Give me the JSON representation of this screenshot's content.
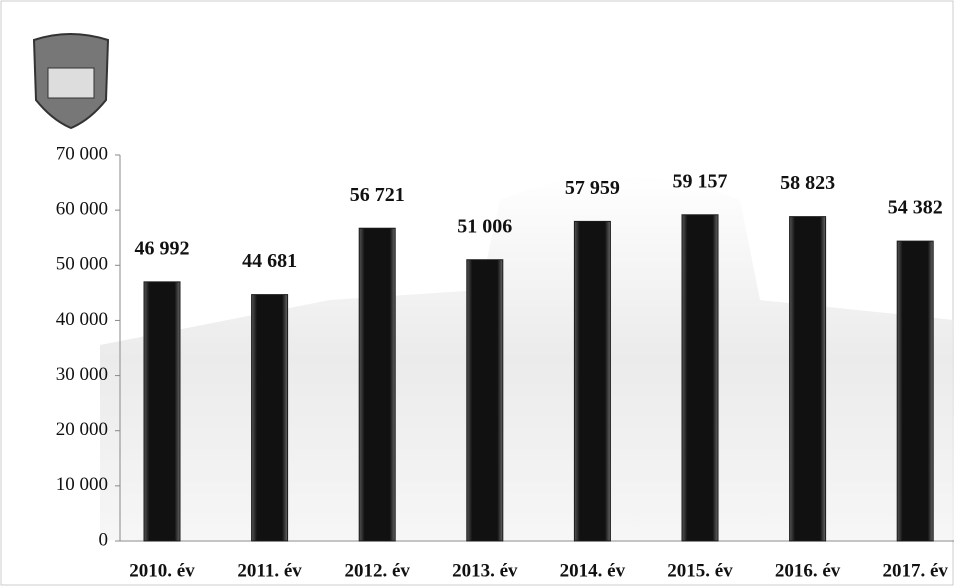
{
  "chart_data": {
    "type": "bar",
    "categories": [
      "2010. év",
      "2011. év",
      "2012. év",
      "2013. év",
      "2014. év",
      "2015. év",
      "2016. év",
      "2017. év"
    ],
    "values": [
      46992,
      44681,
      56721,
      51006,
      57959,
      59157,
      58823,
      54382
    ],
    "value_labels": [
      "46 992",
      "44 681",
      "56 721",
      "51 006",
      "57 959",
      "59 157",
      "58 823",
      "54 382"
    ],
    "color": "#1a1a1a",
    "ylim": [
      0,
      70000
    ],
    "yticks": [
      0,
      {
        "value": 10000,
        "label": "10 000"
      },
      {
        "value": 20000,
        "label": "20 000"
      },
      {
        "value": 30000,
        "label": "30 000"
      },
      {
        "value": 40000,
        "label": "40 000"
      },
      {
        "value": 50000,
        "label": "50 000"
      },
      {
        "value": 60000,
        "label": "60 000"
      },
      {
        "value": 70000,
        "label": "70 000"
      }
    ]
  }
}
